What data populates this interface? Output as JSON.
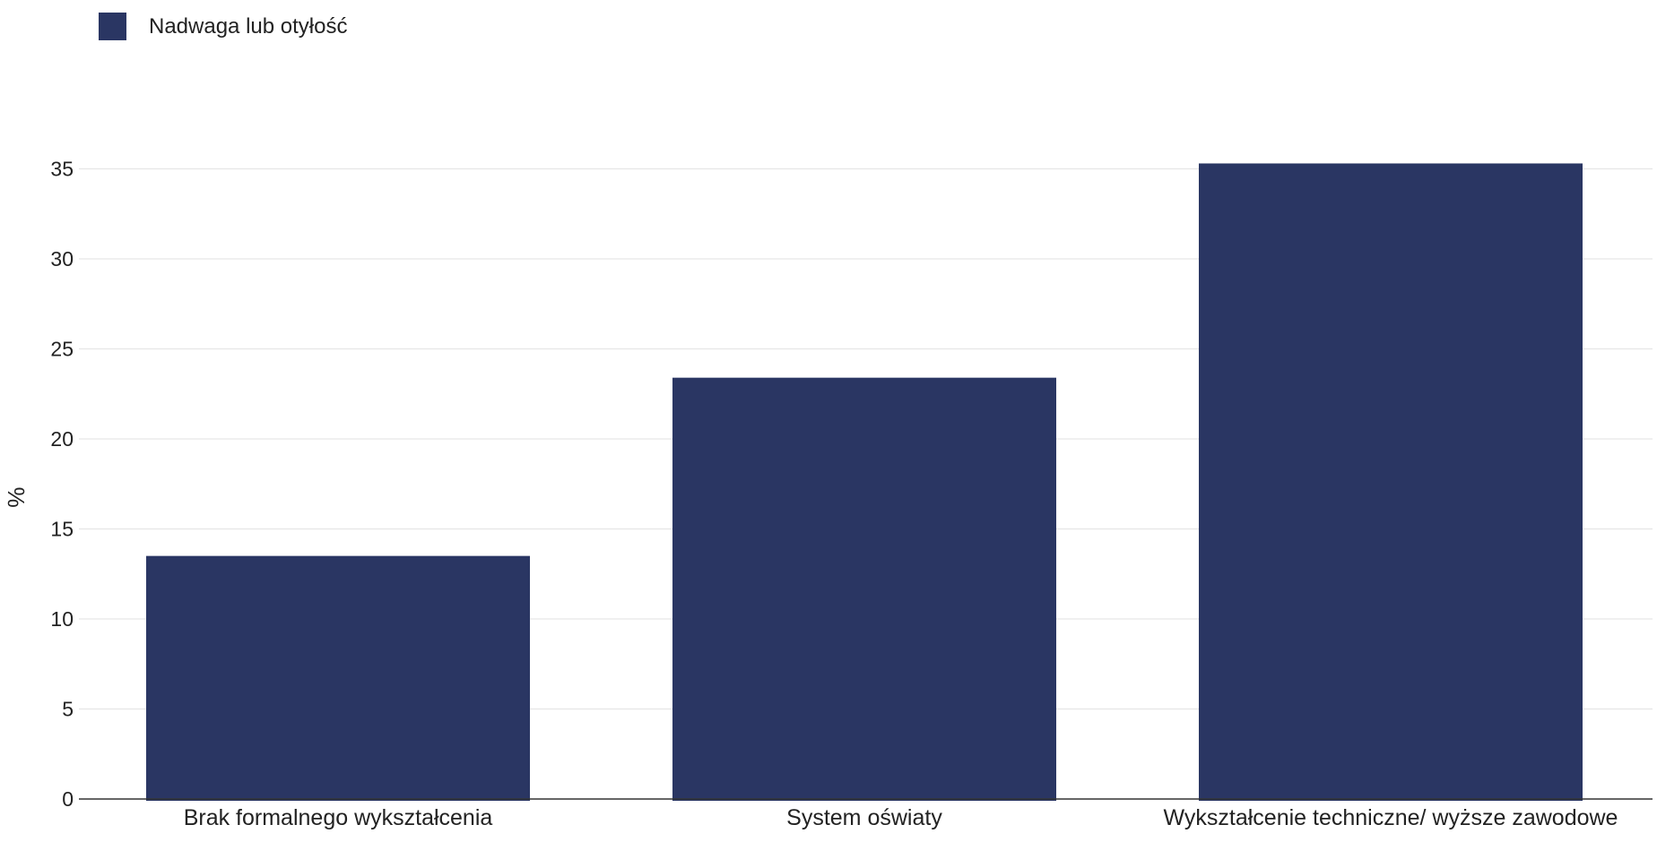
{
  "chart_data": {
    "type": "bar",
    "categories": [
      "Brak formalnego wykształcenia",
      "System oświaty",
      "Wykształcenie techniczne/ wyższe zawodowe"
    ],
    "series": [
      {
        "name": "Nadwaga lub otyłość",
        "color": "#2a3663",
        "values": [
          13.5,
          23.4,
          35.3
        ]
      }
    ],
    "ylabel": "%",
    "ylim": [
      0,
      37
    ],
    "yticks": [
      0,
      5,
      10,
      15,
      20,
      25,
      30,
      35
    ],
    "grid": true,
    "legend": "top-left"
  }
}
